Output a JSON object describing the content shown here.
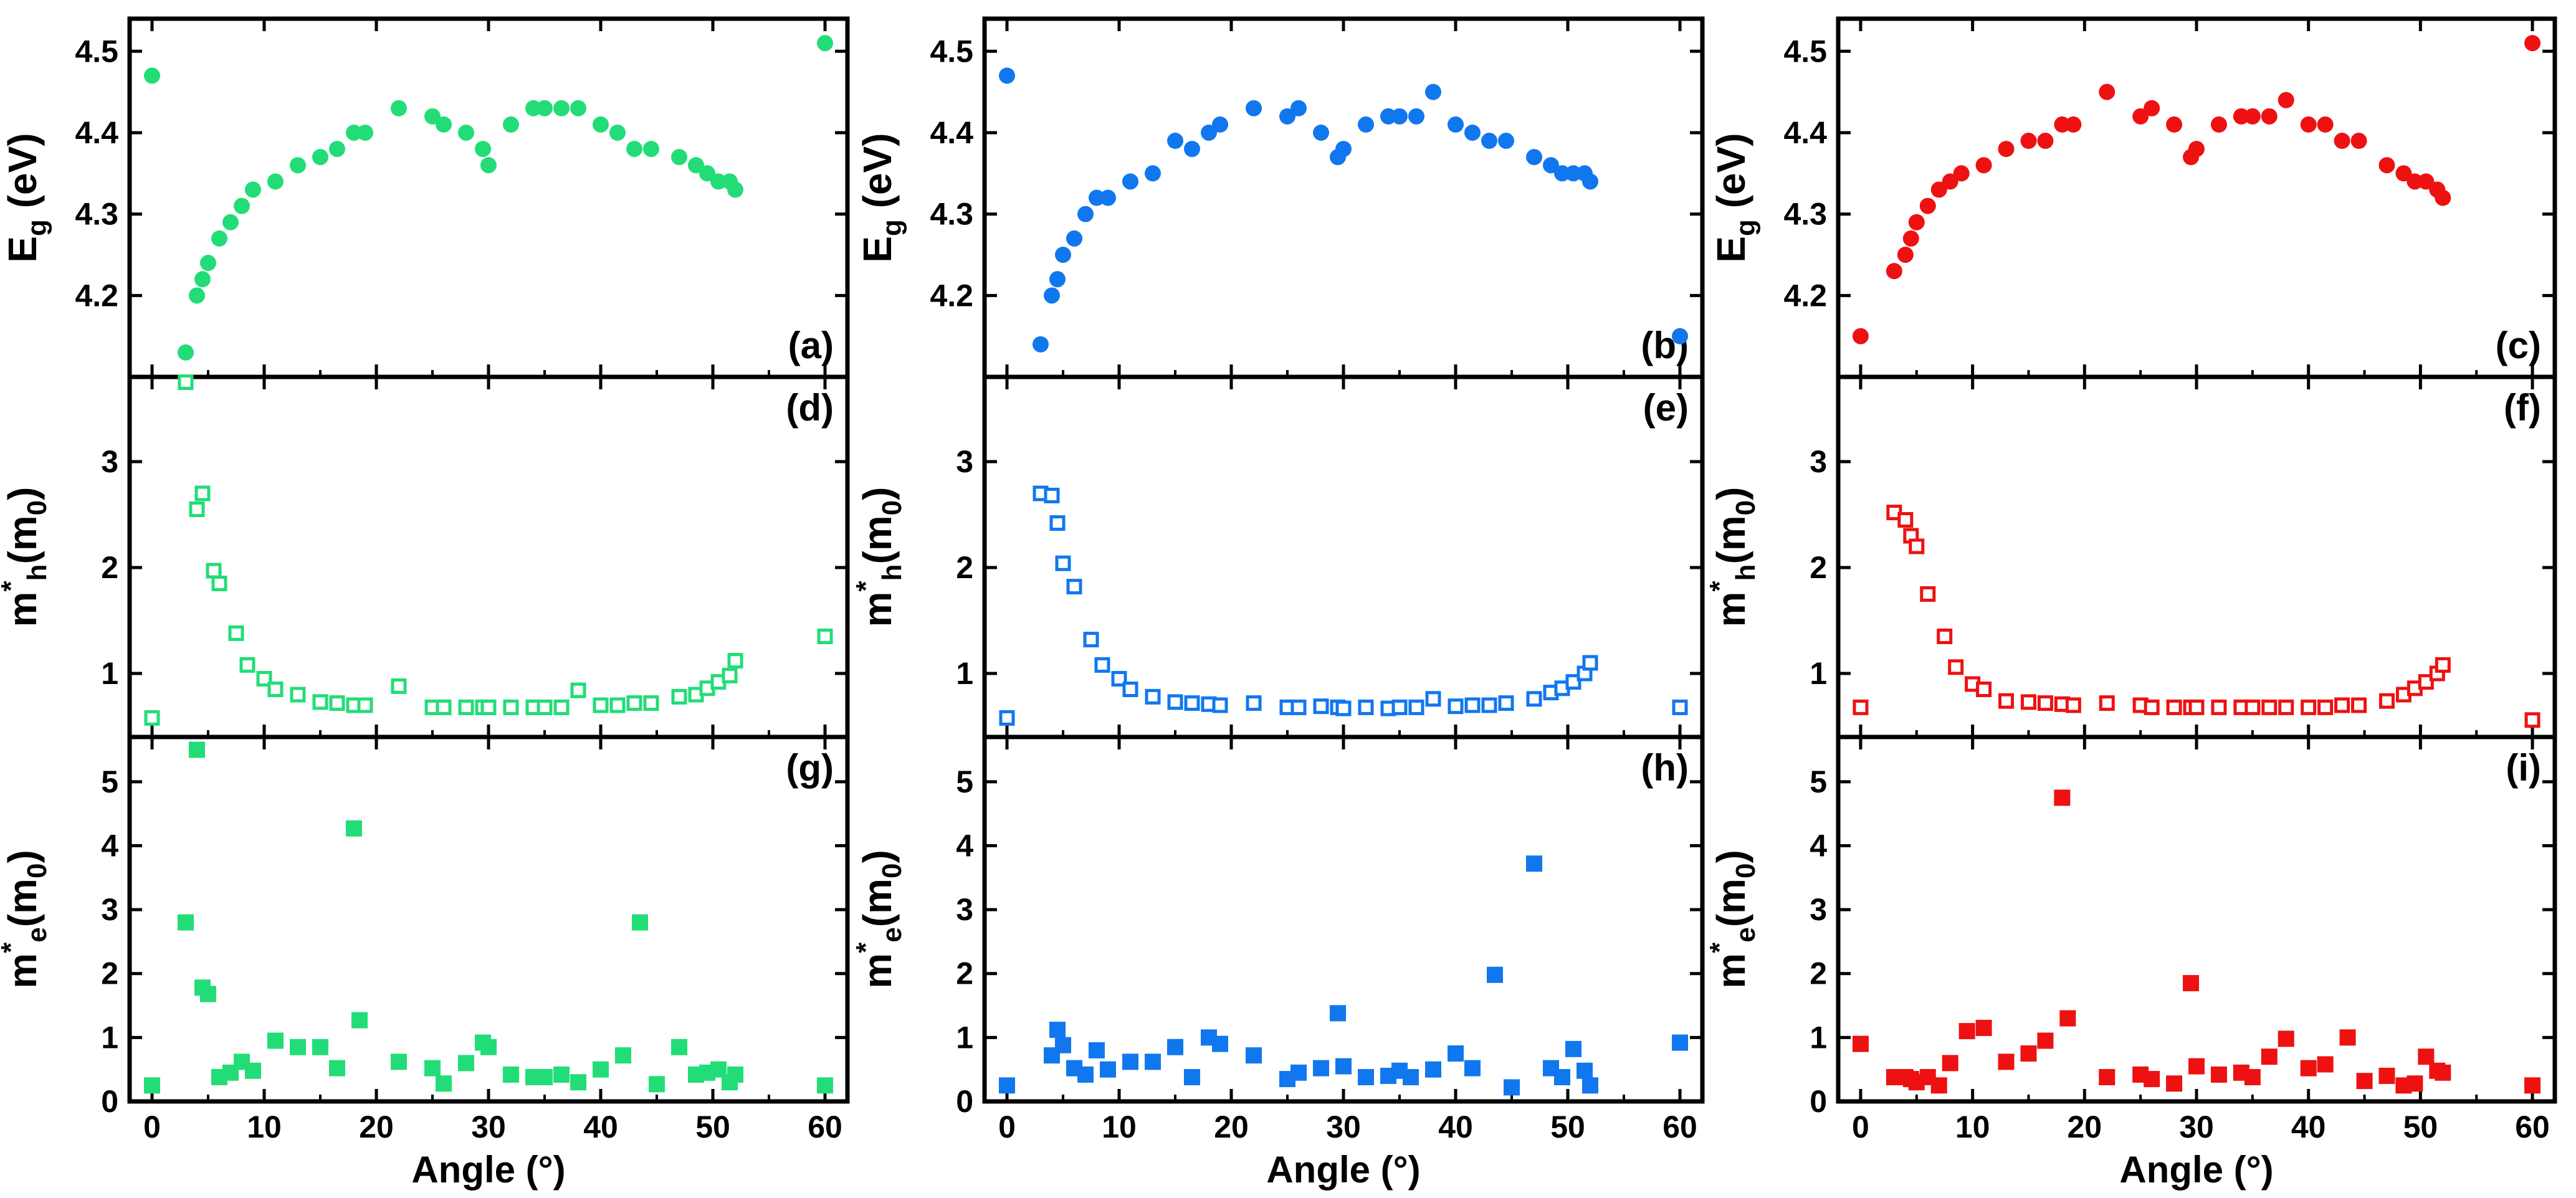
{
  "figure": {
    "xlabel": "Angle (°)"
  },
  "colors": {
    "green": "#22dd77",
    "blue": "#1177ee",
    "red": "#ee1111",
    "axis": "#000000"
  },
  "chart_data": [
    {
      "id": "a",
      "panel_label": "(a)",
      "type": "scatter",
      "marker": "filled-circle",
      "color": "#22dd77",
      "ylabel": "E_g (eV)",
      "ylabel_main": "E",
      "ylabel_sub": "g",
      "ylabel_rest": " (eV)",
      "xlabel": "Angle (°)",
      "xlim": [
        -2,
        62
      ],
      "ylim": [
        4.1,
        4.54
      ],
      "xticks": [
        "0",
        "10",
        "20",
        "30",
        "40",
        "50",
        "60"
      ],
      "yticks": [
        "4.2",
        "4.3",
        "4.4",
        "4.5"
      ],
      "x": [
        0,
        3,
        4,
        4.5,
        5,
        6,
        7,
        8,
        9,
        11,
        13,
        15,
        16.5,
        18,
        19,
        22,
        25,
        26,
        28,
        29.5,
        30,
        32,
        34,
        35,
        36.5,
        38,
        40,
        41.5,
        43,
        44.5,
        47,
        48.5,
        49.5,
        50.5,
        51.5,
        52,
        60
      ],
      "y": [
        4.47,
        4.13,
        4.2,
        4.22,
        4.24,
        4.27,
        4.29,
        4.31,
        4.33,
        4.34,
        4.36,
        4.37,
        4.38,
        4.4,
        4.4,
        4.43,
        4.42,
        4.41,
        4.4,
        4.38,
        4.36,
        4.41,
        4.43,
        4.43,
        4.43,
        4.43,
        4.41,
        4.4,
        4.38,
        4.38,
        4.37,
        4.36,
        4.35,
        4.34,
        4.34,
        4.33,
        4.51
      ]
    },
    {
      "id": "b",
      "panel_label": "(b)",
      "type": "scatter",
      "marker": "filled-circle",
      "color": "#1177ee",
      "ylabel": "E_g (eV)",
      "ylabel_main": "E",
      "ylabel_sub": "g",
      "ylabel_rest": " (eV)",
      "xlabel": "Angle (°)",
      "xlim": [
        -2,
        62
      ],
      "ylim": [
        4.1,
        4.54
      ],
      "xticks": [
        "0",
        "10",
        "20",
        "30",
        "40",
        "50",
        "60"
      ],
      "yticks": [
        "4.2",
        "4.3",
        "4.4",
        "4.5"
      ],
      "x": [
        0,
        3,
        4,
        4.5,
        5,
        6,
        7,
        8,
        9,
        11,
        13,
        15,
        16.5,
        18,
        19,
        22,
        25,
        26,
        28,
        29.5,
        30,
        32,
        34,
        35,
        36.5,
        38,
        40,
        41.5,
        43,
        44.5,
        47,
        48.5,
        49.5,
        50.5,
        51.5,
        52,
        60
      ],
      "y": [
        4.47,
        4.14,
        4.2,
        4.22,
        4.25,
        4.27,
        4.3,
        4.32,
        4.32,
        4.34,
        4.35,
        4.39,
        4.38,
        4.4,
        4.41,
        4.43,
        4.42,
        4.43,
        4.4,
        4.37,
        4.38,
        4.41,
        4.42,
        4.42,
        4.42,
        4.45,
        4.41,
        4.4,
        4.39,
        4.39,
        4.37,
        4.36,
        4.35,
        4.35,
        4.35,
        4.34,
        4.15
      ]
    },
    {
      "id": "c",
      "panel_label": "(c)",
      "type": "scatter",
      "marker": "filled-circle",
      "color": "#ee1111",
      "ylabel": "E_g (eV)",
      "ylabel_main": "E",
      "ylabel_sub": "g",
      "ylabel_rest": " (eV)",
      "xlabel": "Angle (°)",
      "xlim": [
        -2,
        62
      ],
      "ylim": [
        4.1,
        4.54
      ],
      "xticks": [
        "0",
        "10",
        "20",
        "30",
        "40",
        "50",
        "60"
      ],
      "yticks": [
        "4.2",
        "4.3",
        "4.4",
        "4.5"
      ],
      "x": [
        0,
        3,
        4,
        4.5,
        5,
        6,
        7,
        8,
        9,
        11,
        13,
        15,
        16.5,
        18,
        19,
        22,
        25,
        26,
        28,
        29.5,
        30,
        32,
        34,
        35,
        36.5,
        38,
        40,
        41.5,
        43,
        44.5,
        47,
        48.5,
        49.5,
        50.5,
        51.5,
        52,
        60
      ],
      "y": [
        4.15,
        4.23,
        4.25,
        4.27,
        4.29,
        4.31,
        4.33,
        4.34,
        4.35,
        4.36,
        4.38,
        4.39,
        4.39,
        4.41,
        4.41,
        4.45,
        4.42,
        4.43,
        4.41,
        4.37,
        4.38,
        4.41,
        4.42,
        4.42,
        4.42,
        4.44,
        4.41,
        4.41,
        4.39,
        4.39,
        4.36,
        4.35,
        4.34,
        4.34,
        4.33,
        4.32,
        4.51
      ]
    },
    {
      "id": "d",
      "panel_label": "(d)",
      "type": "scatter",
      "marker": "open-square",
      "color": "#22dd77",
      "ylabel": "m*_h(m_0)",
      "ylabel_main": "m",
      "ylabel_sub": "h",
      "ylabel_rest": "(m",
      "ylabel_sub2": "0",
      "ylabel_close": ")",
      "xlabel": "Angle (°)",
      "xlim": [
        -2,
        62
      ],
      "ylim": [
        0.4,
        3.8
      ],
      "xticks": [
        "0",
        "10",
        "20",
        "30",
        "40",
        "50",
        "60"
      ],
      "yticks": [
        "1",
        "2",
        "3"
      ],
      "x": [
        0,
        3,
        4,
        4.5,
        5.5,
        6,
        7.5,
        8.5,
        10,
        11,
        13,
        15,
        16.5,
        18,
        19,
        22,
        25,
        26,
        28,
        29.5,
        30,
        32,
        34,
        35,
        36.5,
        38,
        40,
        41.5,
        43,
        44.5,
        47,
        48.5,
        49.5,
        50.5,
        51.5,
        52,
        60
      ],
      "y": [
        0.58,
        3.75,
        2.55,
        2.7,
        1.97,
        1.85,
        1.38,
        1.08,
        0.95,
        0.85,
        0.8,
        0.73,
        0.72,
        0.7,
        0.7,
        0.88,
        0.68,
        0.68,
        0.68,
        0.68,
        0.68,
        0.68,
        0.68,
        0.68,
        0.68,
        0.84,
        0.7,
        0.7,
        0.72,
        0.72,
        0.78,
        0.8,
        0.86,
        0.92,
        0.98,
        1.12,
        1.35
      ]
    },
    {
      "id": "e",
      "panel_label": "(e)",
      "type": "scatter",
      "marker": "open-square",
      "color": "#1177ee",
      "ylabel": "m*_h(m_0)",
      "ylabel_main": "m",
      "ylabel_sub": "h",
      "ylabel_rest": "(m",
      "ylabel_sub2": "0",
      "ylabel_close": ")",
      "xlabel": "Angle (°)",
      "xlim": [
        -2,
        62
      ],
      "ylim": [
        0.4,
        3.8
      ],
      "xticks": [
        "0",
        "10",
        "20",
        "30",
        "40",
        "50",
        "60"
      ],
      "yticks": [
        "1",
        "2",
        "3"
      ],
      "x": [
        0,
        3,
        4,
        4.5,
        5,
        6,
        7.5,
        8.5,
        10,
        11,
        13,
        15,
        16.5,
        18,
        19,
        22,
        25,
        26,
        28,
        29.5,
        30,
        32,
        34,
        35,
        36.5,
        38,
        40,
        41.5,
        43,
        44.5,
        47,
        48.5,
        49.5,
        50.5,
        51.5,
        52,
        60
      ],
      "y": [
        0.58,
        2.7,
        2.68,
        2.42,
        2.04,
        1.82,
        1.32,
        1.08,
        0.95,
        0.85,
        0.78,
        0.73,
        0.72,
        0.71,
        0.7,
        0.72,
        0.68,
        0.68,
        0.69,
        0.68,
        0.67,
        0.68,
        0.67,
        0.68,
        0.68,
        0.76,
        0.69,
        0.7,
        0.7,
        0.72,
        0.76,
        0.82,
        0.86,
        0.92,
        1.0,
        1.1,
        0.68
      ]
    },
    {
      "id": "f",
      "panel_label": "(f)",
      "type": "scatter",
      "marker": "open-square",
      "color": "#ee1111",
      "ylabel": "m*_h(m_0)",
      "ylabel_main": "m",
      "ylabel_sub": "h",
      "ylabel_rest": "(m",
      "ylabel_sub2": "0",
      "ylabel_close": ")",
      "xlabel": "Angle (°)",
      "xlim": [
        -2,
        62
      ],
      "ylim": [
        0.4,
        3.8
      ],
      "xticks": [
        "0",
        "10",
        "20",
        "30",
        "40",
        "50",
        "60"
      ],
      "yticks": [
        "1",
        "2",
        "3"
      ],
      "x": [
        0,
        3,
        4,
        4.5,
        5,
        6,
        7.5,
        8.5,
        10,
        11,
        13,
        15,
        16.5,
        18,
        19,
        22,
        25,
        26,
        28,
        29.5,
        30,
        32,
        34,
        35,
        36.5,
        38,
        40,
        41.5,
        43,
        44.5,
        47,
        48.5,
        49.5,
        50.5,
        51.5,
        52,
        60
      ],
      "y": [
        0.68,
        2.52,
        2.45,
        2.3,
        2.2,
        1.75,
        1.35,
        1.06,
        0.9,
        0.85,
        0.74,
        0.73,
        0.72,
        0.71,
        0.7,
        0.72,
        0.7,
        0.68,
        0.68,
        0.68,
        0.68,
        0.68,
        0.68,
        0.68,
        0.68,
        0.68,
        0.68,
        0.68,
        0.7,
        0.7,
        0.74,
        0.8,
        0.86,
        0.92,
        1.0,
        1.08,
        0.56
      ]
    },
    {
      "id": "g",
      "panel_label": "(g)",
      "type": "scatter",
      "marker": "filled-square",
      "color": "#22dd77",
      "ylabel": "m*_e(m_0)",
      "ylabel_main": "m",
      "ylabel_sub": "e",
      "ylabel_rest": "(m",
      "ylabel_sub2": "0",
      "ylabel_close": ")",
      "xlabel": "Angle (°)",
      "xlim": [
        -2,
        62
      ],
      "ylim": [
        0,
        5.7
      ],
      "xticks": [
        "0",
        "10",
        "20",
        "30",
        "40",
        "50",
        "60"
      ],
      "yticks": [
        "0",
        "1",
        "2",
        "3",
        "4",
        "5"
      ],
      "x": [
        0,
        3,
        4,
        4.5,
        5,
        6,
        7,
        8,
        9,
        11,
        13,
        15,
        16.5,
        18,
        18.5,
        22,
        25,
        26,
        28,
        29.5,
        30,
        32,
        34,
        35,
        36.5,
        38,
        40,
        42,
        43.5,
        45,
        47,
        48.5,
        49.5,
        50.5,
        51.5,
        52,
        60
      ],
      "y": [
        0.25,
        2.8,
        5.5,
        1.78,
        1.68,
        0.38,
        0.45,
        0.62,
        0.48,
        0.95,
        0.85,
        0.85,
        0.52,
        4.27,
        1.27,
        0.62,
        0.52,
        0.28,
        0.6,
        0.92,
        0.85,
        0.42,
        0.38,
        0.38,
        0.42,
        0.3,
        0.5,
        0.72,
        2.8,
        0.27,
        0.85,
        0.42,
        0.45,
        0.5,
        0.3,
        0.42,
        0.25
      ]
    },
    {
      "id": "h",
      "panel_label": "(h)",
      "type": "scatter",
      "marker": "filled-square",
      "color": "#1177ee",
      "ylabel": "m*_e(m_0)",
      "ylabel_main": "m",
      "ylabel_sub": "e",
      "ylabel_rest": "(m",
      "ylabel_sub2": "0",
      "ylabel_close": ")",
      "xlabel": "Angle (°)",
      "xlim": [
        -2,
        62
      ],
      "ylim": [
        0,
        5.7
      ],
      "xticks": [
        "0",
        "10",
        "20",
        "30",
        "40",
        "50",
        "60"
      ],
      "yticks": [
        "0",
        "1",
        "2",
        "3",
        "4",
        "5"
      ],
      "x": [
        0,
        4,
        4.5,
        5,
        6,
        7,
        8,
        9,
        11,
        13,
        15,
        16.5,
        18,
        19,
        22,
        25,
        26,
        28,
        29.5,
        30,
        32,
        34,
        35,
        36,
        38,
        40,
        41.5,
        43.5,
        45,
        47,
        48.5,
        49.5,
        50.5,
        51.5,
        52,
        60
      ],
      "y": [
        0.25,
        0.72,
        1.12,
        0.88,
        0.52,
        0.42,
        0.8,
        0.5,
        0.62,
        0.62,
        0.85,
        0.38,
        1.0,
        0.9,
        0.72,
        0.35,
        0.45,
        0.52,
        1.38,
        0.55,
        0.38,
        0.4,
        0.48,
        0.38,
        0.5,
        0.75,
        0.52,
        1.98,
        0.22,
        3.72,
        0.52,
        0.38,
        0.82,
        0.48,
        0.25,
        0.92
      ]
    },
    {
      "id": "i",
      "panel_label": "(i)",
      "type": "scatter",
      "marker": "filled-square",
      "color": "#ee1111",
      "ylabel": "m*_e(m_0)",
      "ylabel_main": "m",
      "ylabel_sub": "e",
      "ylabel_rest": "(m",
      "ylabel_sub2": "0",
      "ylabel_close": ")",
      "xlabel": "Angle (°)",
      "xlim": [
        -2,
        62
      ],
      "ylim": [
        0,
        5.7
      ],
      "xticks": [
        "0",
        "10",
        "20",
        "30",
        "40",
        "50",
        "60"
      ],
      "yticks": [
        "0",
        "1",
        "2",
        "3",
        "4",
        "5"
      ],
      "x": [
        0,
        3,
        4,
        4.5,
        5,
        6,
        7,
        8,
        9.5,
        11,
        13,
        15,
        16.5,
        18,
        18.5,
        22,
        25,
        26,
        28,
        29.5,
        30,
        32,
        34,
        35,
        36.5,
        38,
        40,
        41.5,
        43.5,
        45,
        47,
        48.5,
        49.5,
        50.5,
        51.5,
        52,
        60
      ],
      "y": [
        0.9,
        0.38,
        0.38,
        0.35,
        0.3,
        0.38,
        0.25,
        0.6,
        1.1,
        1.15,
        0.62,
        0.75,
        0.95,
        4.75,
        1.3,
        0.38,
        0.42,
        0.35,
        0.28,
        1.85,
        0.55,
        0.42,
        0.45,
        0.38,
        0.7,
        0.98,
        0.52,
        0.58,
        1.0,
        0.32,
        0.4,
        0.25,
        0.28,
        0.7,
        0.48,
        0.45,
        0.25
      ]
    }
  ]
}
